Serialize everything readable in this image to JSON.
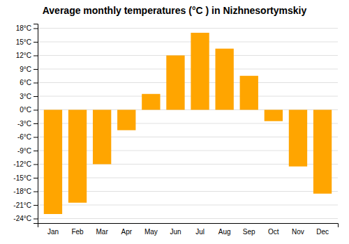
{
  "chart_data": {
    "type": "bar",
    "title": "Average monthly temperatures (°C ) in Nizhnesortymskiy",
    "categories": [
      "Jan",
      "Feb",
      "Mar",
      "Apr",
      "May",
      "Jun",
      "Jul",
      "Aug",
      "Sep",
      "Oct",
      "Nov",
      "Dec"
    ],
    "values": [
      -23,
      -20.5,
      -12,
      -4.5,
      3.5,
      12,
      17,
      13.5,
      7.5,
      -2.5,
      -12.5,
      -18.5
    ],
    "color": "#FFA500",
    "ylim": [
      -25,
      19
    ],
    "yticks": [
      {
        "value": -24,
        "label": "-24°C"
      },
      {
        "value": -21,
        "label": "-21°C"
      },
      {
        "value": -18,
        "label": "-18°C"
      },
      {
        "value": -15,
        "label": "-15°C"
      },
      {
        "value": -12,
        "label": "-12°C"
      },
      {
        "value": -9,
        "label": "-9°C"
      },
      {
        "value": -6,
        "label": "-6°C"
      },
      {
        "value": -3,
        "label": "-3°C"
      },
      {
        "value": 0,
        "label": "0°C"
      },
      {
        "value": 3,
        "label": "3°C"
      },
      {
        "value": 6,
        "label": "6°C"
      },
      {
        "value": 9,
        "label": "9°C"
      },
      {
        "value": 12,
        "label": "12°C"
      },
      {
        "value": 15,
        "label": "15°C"
      },
      {
        "value": 18,
        "label": "18°C"
      }
    ],
    "grid": true
  }
}
